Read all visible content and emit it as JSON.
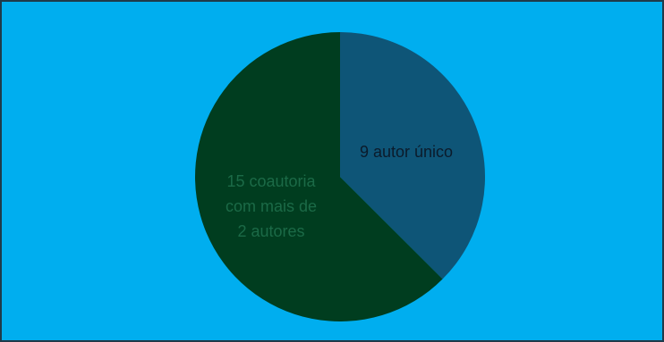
{
  "colors": {
    "background": "#00aeef",
    "frame_border": "#1f3a4a"
  },
  "chart_data": {
    "type": "pie",
    "title": "",
    "slices": [
      {
        "value": 9,
        "label": "autor único",
        "label_lines": [
          "9  autor único"
        ],
        "color": "#0e5577",
        "text_color": "#0b1b2b"
      },
      {
        "value": 15,
        "label": "coautoria com mais de 2 autores",
        "label_lines": [
          "15  coautoria",
          "com mais de",
          "2 autores"
        ],
        "color": "#003d1f",
        "text_color": "#1b6a47"
      }
    ]
  }
}
